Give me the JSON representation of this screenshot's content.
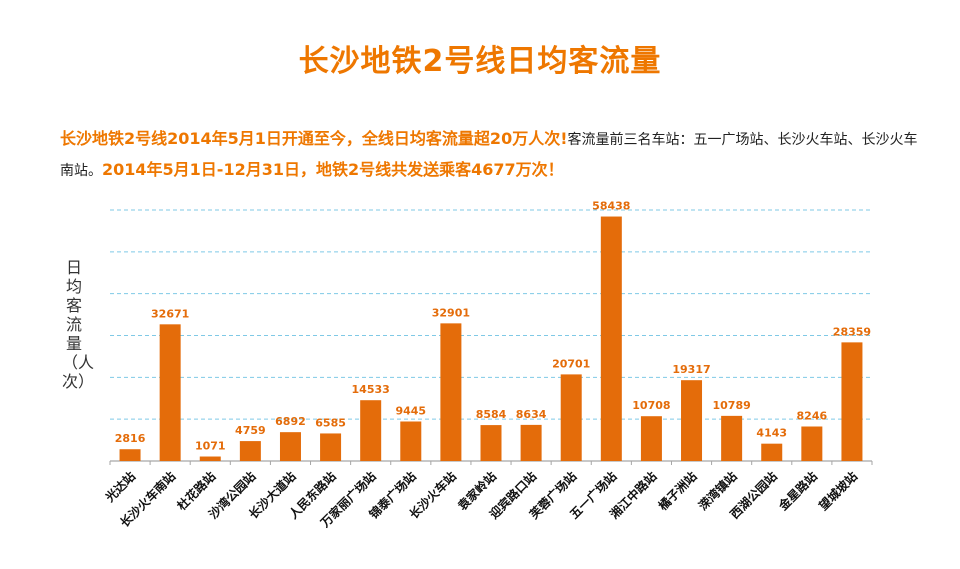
{
  "title": "长沙地铁2号线日均客流量",
  "summary": {
    "part1": "长沙地铁2号线2014年5月1日开通至今，全线日均客流量超20万人次!",
    "part2": "客流量前三名车站：五一广场站、长沙火车站、长沙火车南站。",
    "part3": "2014年5月1日-12月31日，地铁2号线共发送乘客4677万次！"
  },
  "colors": {
    "accent": "#EE7700",
    "bar": "#E46C0A",
    "label": "#E46C0A",
    "grid": "#7FC9E6",
    "axis": "#A6A6A6"
  },
  "chart_data": {
    "type": "bar",
    "ylabel": "日均客流量（人次）",
    "categories": [
      "光达站",
      "长沙火车南站",
      "杜花路站",
      "沙湾公园站",
      "长沙大道站",
      "人民东路站",
      "万家丽广场站",
      "锦泰广场站",
      "长沙火车站",
      "袁家岭站",
      "迎宾路口站",
      "芙蓉广场站",
      "五一广场站",
      "湘江中路站",
      "橘子洲站",
      "溁湾镇站",
      "西湖公园站",
      "金星路站",
      "望城坡站"
    ],
    "values": [
      2816,
      32671,
      1071,
      4759,
      6892,
      6585,
      14533,
      9445,
      32901,
      8584,
      8634,
      20701,
      58438,
      10708,
      19317,
      10789,
      4143,
      8246,
      28359
    ],
    "ylim": [
      0,
      60000
    ],
    "grid": true,
    "data_labels": true
  }
}
